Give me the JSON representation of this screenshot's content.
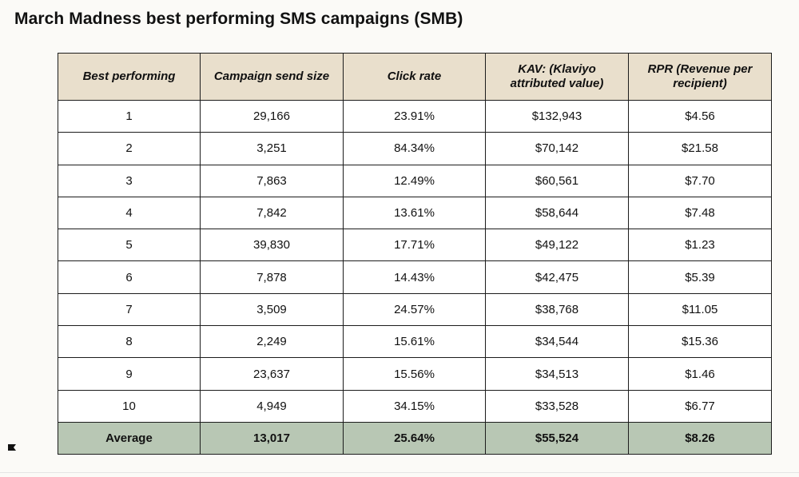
{
  "title": "March Madness best performing SMS campaigns (SMB)",
  "table": {
    "headers": [
      "Best performing",
      "Campaign send size",
      "Click rate",
      "KAV: (Klaviyo attributed value)",
      "RPR (Revenue per recipient)"
    ],
    "rows": [
      [
        "1",
        "29,166",
        "23.91%",
        "$132,943",
        "$4.56"
      ],
      [
        "2",
        "3,251",
        "84.34%",
        "$70,142",
        "$21.58"
      ],
      [
        "3",
        "7,863",
        "12.49%",
        "$60,561",
        "$7.70"
      ],
      [
        "4",
        "7,842",
        "13.61%",
        "$58,644",
        "$7.48"
      ],
      [
        "5",
        "39,830",
        "17.71%",
        "$49,122",
        "$1.23"
      ],
      [
        "6",
        "7,878",
        "14.43%",
        "$42,475",
        "$5.39"
      ],
      [
        "7",
        "3,509",
        "24.57%",
        "$38,768",
        "$11.05"
      ],
      [
        "8",
        "2,249",
        "15.61%",
        "$34,544",
        "$15.36"
      ],
      [
        "9",
        "23,637",
        "15.56%",
        "$34,513",
        "$1.46"
      ],
      [
        "10",
        "4,949",
        "34.15%",
        "$33,528",
        "$6.77"
      ]
    ],
    "average": [
      "Average",
      "13,017",
      "25.64%",
      "$55,524",
      "$8.26"
    ]
  },
  "icons": {
    "corner": "flag-icon"
  },
  "colors": {
    "header_bg": "#e9dfcc",
    "average_bg": "#b8c7b4",
    "border": "#1c1c1c"
  }
}
